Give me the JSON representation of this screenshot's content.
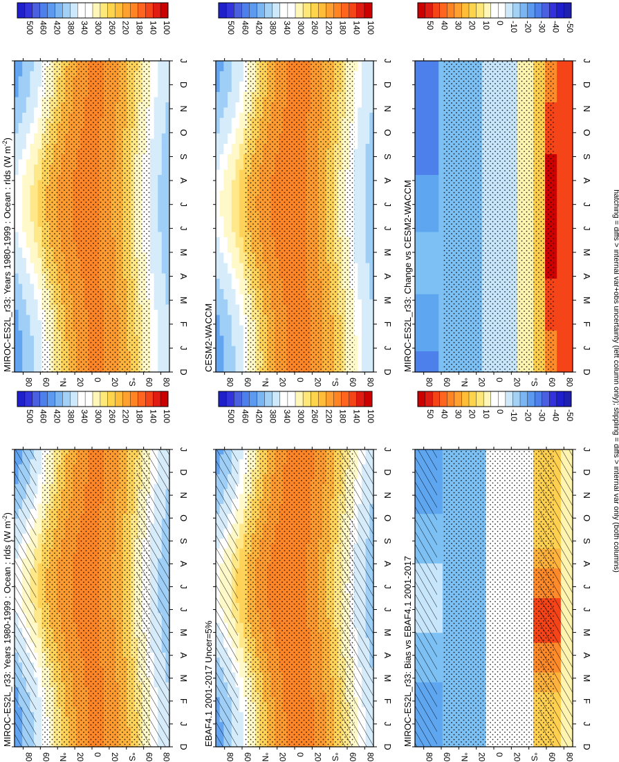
{
  "figure": {
    "footnote": "hatching = diffs > internal var+obs uncertainty (left column only); stippling = diffs > internal var only (both columns)"
  },
  "chart_data": [
    {
      "type": "heatmap",
      "id": "p1",
      "title": "MIROC-ES2L_r33: Years 1980-1999 : Ocean : rlds (W m",
      "title_sup": "-2",
      "title_end": ")",
      "x_ticks": [
        "D",
        "J",
        "F",
        "M",
        "A",
        "M",
        "J",
        "J",
        "A",
        "S",
        "O",
        "N",
        "D",
        "J"
      ],
      "lat_ticks": [
        "80",
        "60",
        "°N",
        "20",
        "0",
        "20",
        "°S",
        "60",
        "80"
      ],
      "cbar_ticks": [
        "500",
        "460",
        "420",
        "380",
        "340",
        "300",
        "260",
        "220",
        "180",
        "140",
        "100"
      ],
      "cbar_range": [
        80,
        520
      ],
      "field": "abs",
      "hatch": true,
      "stipple": true
    },
    {
      "type": "heatmap",
      "id": "p2",
      "title": "EBAF4.1 2001-2017 Uncer=5%",
      "x_ticks": [
        "D",
        "J",
        "F",
        "M",
        "A",
        "M",
        "J",
        "J",
        "A",
        "S",
        "O",
        "N",
        "D",
        "J"
      ],
      "lat_ticks": [
        "80",
        "60",
        "°N",
        "20",
        "0",
        "20",
        "°S",
        "60",
        "80"
      ],
      "cbar_ticks": [
        "500",
        "460",
        "420",
        "380",
        "340",
        "300",
        "260",
        "220",
        "180",
        "140",
        "100"
      ],
      "cbar_range": [
        80,
        520
      ],
      "field": "abs",
      "hatch": true,
      "stipple": true
    },
    {
      "type": "heatmap",
      "id": "p3",
      "title": "MIROC-ES2L_r33: Bias vs EBAF4.1 2001-2017",
      "x_ticks": [
        "D",
        "J",
        "F",
        "M",
        "A",
        "M",
        "J",
        "J",
        "A",
        "S",
        "O",
        "N",
        "D",
        "J"
      ],
      "lat_ticks": [
        "80",
        "60",
        "°N",
        "20",
        "0",
        "20",
        "°S",
        "60",
        "80"
      ],
      "cbar_ticks": [
        "50",
        "40",
        "30",
        "20",
        "10",
        "0",
        "-10",
        "-20",
        "-30",
        "-40",
        "-50"
      ],
      "cbar_range": [
        -55,
        55
      ],
      "field": "bias",
      "hatch": true,
      "stipple": true
    },
    {
      "type": "heatmap",
      "id": "p4",
      "title": "MIROC-ES2L_r33: Years 1980-1999 : Ocean : rlds (W m",
      "title_sup": "-2",
      "title_end": ")",
      "x_ticks": [
        "D",
        "J",
        "F",
        "M",
        "A",
        "M",
        "J",
        "J",
        "A",
        "S",
        "O",
        "N",
        "D",
        "J"
      ],
      "lat_ticks": [
        "80",
        "60",
        "°N",
        "20",
        "0",
        "20",
        "°S",
        "60",
        "80"
      ],
      "cbar_ticks": [
        "500",
        "460",
        "420",
        "380",
        "340",
        "300",
        "260",
        "220",
        "180",
        "140",
        "100"
      ],
      "cbar_range": [
        80,
        520
      ],
      "field": "abs",
      "hatch": false,
      "stipple": true
    },
    {
      "type": "heatmap",
      "id": "p5",
      "title": "CESM2-WACCM",
      "x_ticks": [
        "D",
        "J",
        "F",
        "M",
        "A",
        "M",
        "J",
        "J",
        "A",
        "S",
        "O",
        "N",
        "D",
        "J"
      ],
      "lat_ticks": [
        "80",
        "60",
        "°N",
        "20",
        "0",
        "20",
        "°S",
        "60",
        "80"
      ],
      "cbar_ticks": [
        "500",
        "460",
        "420",
        "380",
        "340",
        "300",
        "260",
        "220",
        "180",
        "140",
        "100"
      ],
      "cbar_range": [
        80,
        520
      ],
      "field": "abs",
      "hatch": false,
      "stipple": true
    },
    {
      "type": "heatmap",
      "id": "p6",
      "title": "MIROC-ES2L_r33: Change vs CESM2-WACCM",
      "x_ticks": [
        "D",
        "J",
        "F",
        "M",
        "A",
        "M",
        "J",
        "J",
        "A",
        "S",
        "O",
        "N",
        "D",
        "J"
      ],
      "lat_ticks": [
        "80",
        "60",
        "°N",
        "20",
        "0",
        "20",
        "°S",
        "60",
        "80"
      ],
      "cbar_ticks": [
        "50",
        "40",
        "30",
        "20",
        "10",
        "0",
        "-10",
        "-20",
        "-30",
        "-40",
        "-50"
      ],
      "cbar_range": [
        -55,
        55
      ],
      "field": "change",
      "hatch": false,
      "stipple": true
    }
  ]
}
